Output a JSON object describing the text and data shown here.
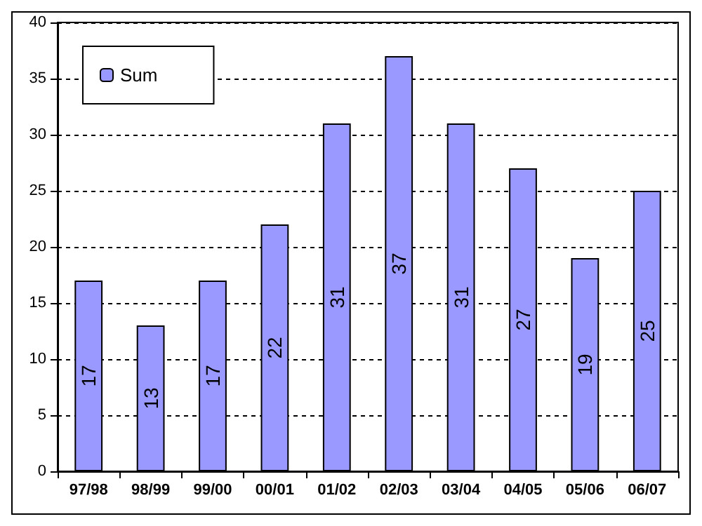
{
  "chart_data": {
    "type": "bar",
    "categories": [
      "97/98",
      "98/99",
      "99/00",
      "00/01",
      "01/02",
      "02/03",
      "03/04",
      "04/05",
      "05/06",
      "06/07"
    ],
    "series": [
      {
        "name": "Sum",
        "color": "#9999ff",
        "values": [
          17,
          13,
          17,
          22,
          31,
          37,
          31,
          27,
          19,
          25
        ]
      }
    ],
    "ylim": [
      0,
      40
    ],
    "yticks": [
      0,
      5,
      10,
      15,
      20,
      25,
      30,
      35,
      40
    ],
    "grid": "y",
    "legend": "top left",
    "data_labels": true
  }
}
